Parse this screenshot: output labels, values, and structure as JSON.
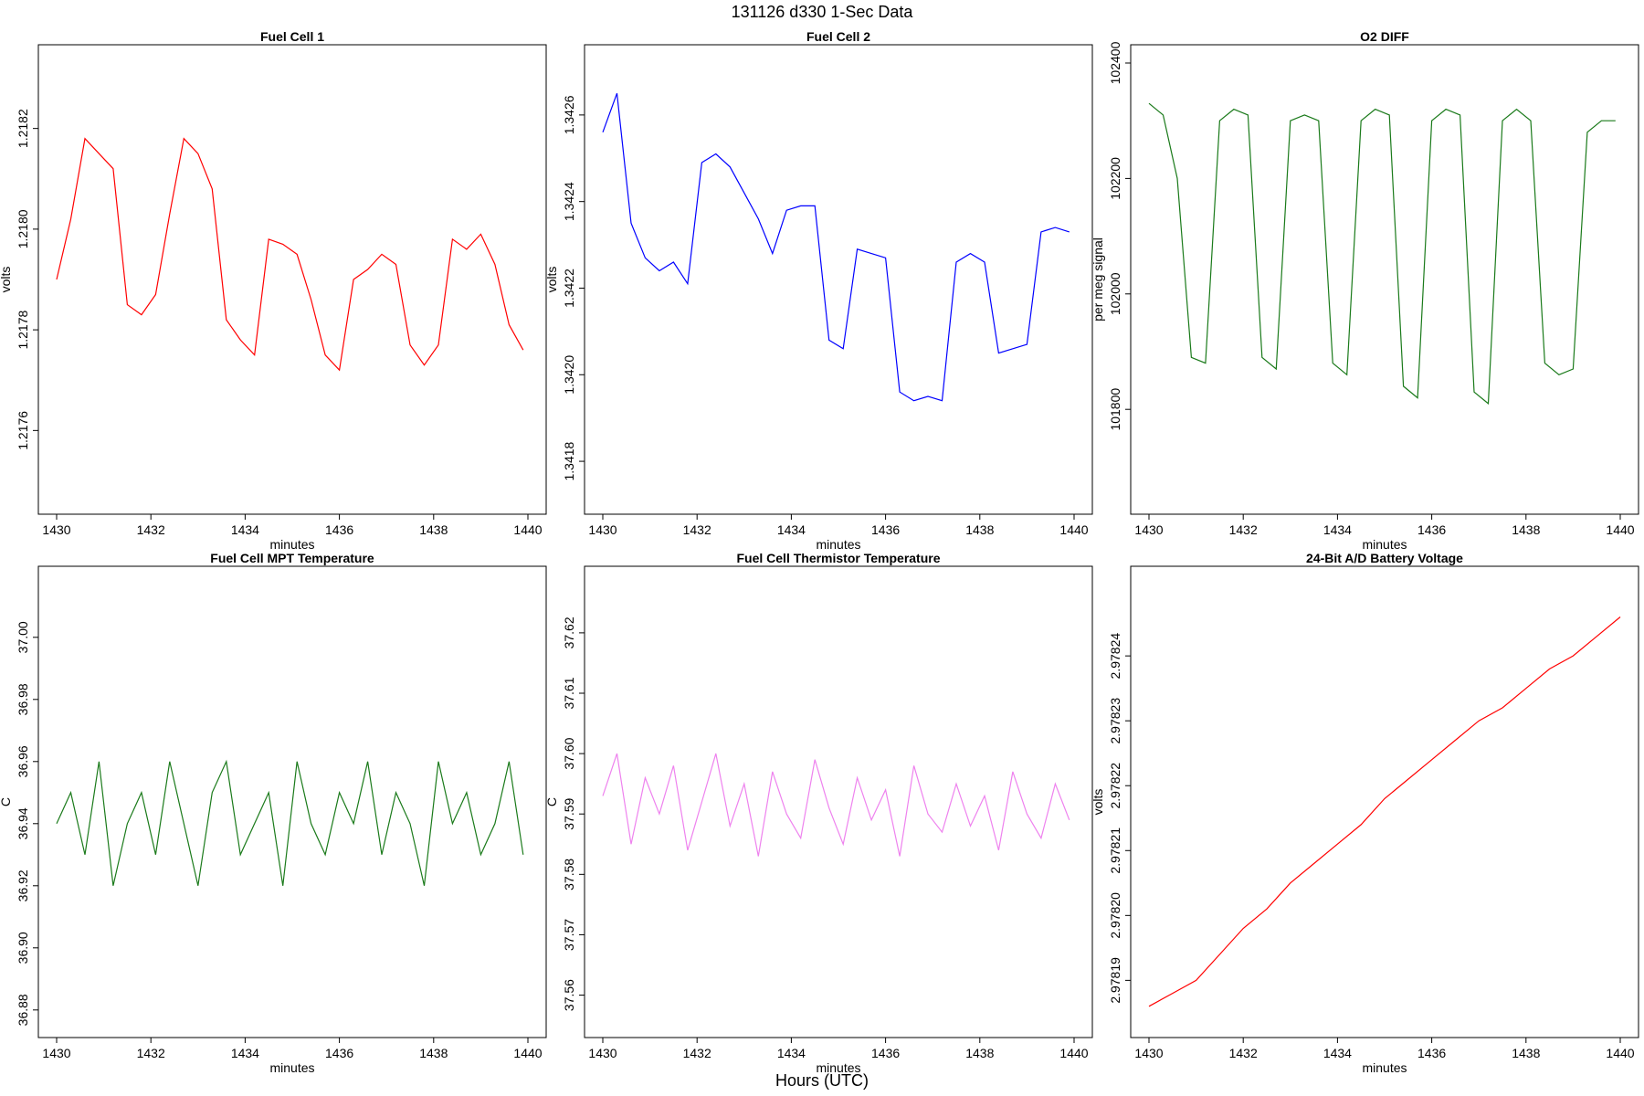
{
  "title": "131126   d330   1-Sec Data",
  "footer_xlabel": "Hours (UTC)",
  "chart_data": [
    {
      "type": "line",
      "title": "Fuel Cell 1",
      "xlabel": "minutes",
      "ylabel": "volts",
      "color": "#ff0000",
      "xlim": [
        1430,
        1440
      ],
      "ylim": [
        1.21747,
        1.21833
      ],
      "xticks": [
        1430,
        1432,
        1434,
        1436,
        1438,
        1440
      ],
      "xtick_labels": [
        "1430",
        "1432",
        "1434",
        "1436",
        "1438",
        "1440"
      ],
      "yticks": [
        1.2176,
        1.2178,
        1.218,
        1.2182
      ],
      "ytick_labels": [
        "1.2176",
        "1.2178",
        "1.2180",
        "1.2182"
      ],
      "x": [
        1430.0,
        1430.3,
        1430.6,
        1430.9,
        1431.2,
        1431.5,
        1431.8,
        1432.1,
        1432.4,
        1432.7,
        1433.0,
        1433.3,
        1433.6,
        1433.9,
        1434.2,
        1434.5,
        1434.8,
        1435.1,
        1435.4,
        1435.7,
        1436.0,
        1436.3,
        1436.6,
        1436.9,
        1437.2,
        1437.5,
        1437.8,
        1438.1,
        1438.4,
        1438.7,
        1439.0,
        1439.3,
        1439.6,
        1439.9
      ],
      "y": [
        1.2179,
        1.21802,
        1.21818,
        1.21815,
        1.21812,
        1.21785,
        1.21783,
        1.21787,
        1.21803,
        1.21818,
        1.21815,
        1.21808,
        1.21782,
        1.21778,
        1.21775,
        1.21798,
        1.21797,
        1.21795,
        1.21786,
        1.21775,
        1.21772,
        1.2179,
        1.21792,
        1.21795,
        1.21793,
        1.21777,
        1.21773,
        1.21777,
        1.21798,
        1.21796,
        1.21799,
        1.21793,
        1.21781,
        1.21776
      ]
    },
    {
      "type": "line",
      "title": "Fuel Cell 2",
      "xlabel": "minutes",
      "ylabel": "volts",
      "color": "#0000ff",
      "xlim": [
        1430,
        1440
      ],
      "ylim": [
        1.34172,
        1.34272
      ],
      "xticks": [
        1430,
        1432,
        1434,
        1436,
        1438,
        1440
      ],
      "xtick_labels": [
        "1430",
        "1432",
        "1434",
        "1436",
        "1438",
        "1440"
      ],
      "yticks": [
        1.3418,
        1.342,
        1.3422,
        1.3424,
        1.3426
      ],
      "ytick_labels": [
        "1.3418",
        "1.3420",
        "1.3422",
        "1.3424",
        "1.3426"
      ],
      "x": [
        1430.0,
        1430.3,
        1430.6,
        1430.9,
        1431.2,
        1431.5,
        1431.8,
        1432.1,
        1432.4,
        1432.7,
        1433.0,
        1433.3,
        1433.6,
        1433.9,
        1434.2,
        1434.5,
        1434.8,
        1435.1,
        1435.4,
        1435.7,
        1436.0,
        1436.3,
        1436.6,
        1436.9,
        1437.2,
        1437.5,
        1437.8,
        1438.1,
        1438.4,
        1438.7,
        1439.0,
        1439.3,
        1439.6,
        1439.9
      ],
      "y": [
        1.34256,
        1.34265,
        1.34235,
        1.34227,
        1.34224,
        1.34226,
        1.34221,
        1.34249,
        1.34251,
        1.34248,
        1.34242,
        1.34236,
        1.34228,
        1.34238,
        1.34239,
        1.34239,
        1.34208,
        1.34206,
        1.34229,
        1.34228,
        1.34227,
        1.34196,
        1.34194,
        1.34195,
        1.34194,
        1.34226,
        1.34228,
        1.34226,
        1.34205,
        1.34206,
        1.34207,
        1.34233,
        1.34234,
        1.34233
      ]
    },
    {
      "type": "line",
      "title": "O2 DIFF",
      "xlabel": "minutes",
      "ylabel": "per meg signal",
      "color": "#1a7a1a",
      "xlim": [
        1430,
        1440
      ],
      "ylim": [
        101650,
        102400
      ],
      "xticks": [
        1430,
        1432,
        1434,
        1436,
        1438,
        1440
      ],
      "xtick_labels": [
        "1430",
        "1432",
        "1434",
        "1436",
        "1438",
        "1440"
      ],
      "yticks": [
        101800,
        102000,
        102200,
        102400
      ],
      "ytick_labels": [
        "101800",
        "102000",
        "102200",
        "102400"
      ],
      "x": [
        1430.0,
        1430.3,
        1430.6,
        1430.9,
        1431.2,
        1431.5,
        1431.8,
        1432.1,
        1432.4,
        1432.7,
        1433.0,
        1433.3,
        1433.6,
        1433.9,
        1434.2,
        1434.5,
        1434.8,
        1435.1,
        1435.4,
        1435.7,
        1436.0,
        1436.3,
        1436.6,
        1436.9,
        1437.2,
        1437.5,
        1437.8,
        1438.1,
        1438.4,
        1438.7,
        1439.0,
        1439.3,
        1439.6,
        1439.9
      ],
      "y": [
        102330,
        102310,
        102200,
        101890,
        101880,
        102300,
        102320,
        102310,
        101890,
        101870,
        102300,
        102310,
        102300,
        101880,
        101860,
        102300,
        102320,
        102310,
        101840,
        101820,
        102300,
        102320,
        102310,
        101830,
        101810,
        102300,
        102320,
        102300,
        101880,
        101860,
        101870,
        102280,
        102300,
        102300
      ]
    },
    {
      "type": "line",
      "title": "Fuel Cell MPT Temperature",
      "xlabel": "minutes",
      "ylabel": "C",
      "color": "#1a7a1a",
      "xlim": [
        1430,
        1440
      ],
      "ylim": [
        36.877,
        37.017
      ],
      "xticks": [
        1430,
        1432,
        1434,
        1436,
        1438,
        1440
      ],
      "xtick_labels": [
        "1430",
        "1432",
        "1434",
        "1436",
        "1438",
        "1440"
      ],
      "yticks": [
        36.88,
        36.9,
        36.92,
        36.94,
        36.96,
        36.98,
        37.0
      ],
      "ytick_labels": [
        "36.88",
        "36.90",
        "36.92",
        "36.94",
        "36.96",
        "36.98",
        "37.00"
      ],
      "x": [
        1430.0,
        1430.3,
        1430.6,
        1430.9,
        1431.2,
        1431.5,
        1431.8,
        1432.1,
        1432.4,
        1432.7,
        1433.0,
        1433.3,
        1433.6,
        1433.9,
        1434.2,
        1434.5,
        1434.8,
        1435.1,
        1435.4,
        1435.7,
        1436.0,
        1436.3,
        1436.6,
        1436.9,
        1437.2,
        1437.5,
        1437.8,
        1438.1,
        1438.4,
        1438.7,
        1439.0,
        1439.3,
        1439.6,
        1439.9
      ],
      "y": [
        36.94,
        36.95,
        36.93,
        36.96,
        36.92,
        36.94,
        36.95,
        36.93,
        36.96,
        36.94,
        36.92,
        36.95,
        36.96,
        36.93,
        36.94,
        36.95,
        36.92,
        36.96,
        36.94,
        36.93,
        36.95,
        36.94,
        36.96,
        36.93,
        36.95,
        36.94,
        36.92,
        36.96,
        36.94,
        36.95,
        36.93,
        36.94,
        36.96,
        36.93
      ]
    },
    {
      "type": "line",
      "title": "Fuel Cell Thermistor Temperature",
      "xlabel": "minutes",
      "ylabel": "C",
      "color": "#ee82ee",
      "xlim": [
        1430,
        1440
      ],
      "ylim": [
        37.556,
        37.628
      ],
      "xticks": [
        1430,
        1432,
        1434,
        1436,
        1438,
        1440
      ],
      "xtick_labels": [
        "1430",
        "1432",
        "1434",
        "1436",
        "1438",
        "1440"
      ],
      "yticks": [
        37.56,
        37.57,
        37.58,
        37.59,
        37.6,
        37.61,
        37.62
      ],
      "ytick_labels": [
        "37.56",
        "37.57",
        "37.58",
        "37.59",
        "37.60",
        "37.61",
        "37.62"
      ],
      "x": [
        1430.0,
        1430.3,
        1430.6,
        1430.9,
        1431.2,
        1431.5,
        1431.8,
        1432.1,
        1432.4,
        1432.7,
        1433.0,
        1433.3,
        1433.6,
        1433.9,
        1434.2,
        1434.5,
        1434.8,
        1435.1,
        1435.4,
        1435.7,
        1436.0,
        1436.3,
        1436.6,
        1436.9,
        1437.2,
        1437.5,
        1437.8,
        1438.1,
        1438.4,
        1438.7,
        1439.0,
        1439.3,
        1439.6,
        1439.9
      ],
      "y": [
        37.593,
        37.6,
        37.585,
        37.596,
        37.59,
        37.598,
        37.584,
        37.592,
        37.6,
        37.588,
        37.595,
        37.583,
        37.597,
        37.59,
        37.586,
        37.599,
        37.591,
        37.585,
        37.596,
        37.589,
        37.594,
        37.583,
        37.598,
        37.59,
        37.587,
        37.595,
        37.588,
        37.593,
        37.584,
        37.597,
        37.59,
        37.586,
        37.595,
        37.589
      ]
    },
    {
      "type": "line",
      "title": "24-Bit A/D Battery Voltage",
      "xlabel": "minutes",
      "ylabel": "volts",
      "color": "#ff0000",
      "xlim": [
        1430,
        1440
      ],
      "ylim": [
        2.978184,
        2.978251
      ],
      "xticks": [
        1430,
        1432,
        1434,
        1436,
        1438,
        1440
      ],
      "xtick_labels": [
        "1430",
        "1432",
        "1434",
        "1436",
        "1438",
        "1440"
      ],
      "yticks": [
        2.97819,
        2.9782,
        2.97821,
        2.97822,
        2.97823,
        2.97824
      ],
      "ytick_labels": [
        "2.97819",
        "2.97820",
        "2.97821",
        "2.97822",
        "2.97823",
        "2.97824"
      ],
      "x": [
        1430.0,
        1430.5,
        1431.0,
        1431.5,
        1432.0,
        1432.5,
        1433.0,
        1433.5,
        1434.0,
        1434.5,
        1435.0,
        1435.5,
        1436.0,
        1436.5,
        1437.0,
        1437.5,
        1438.0,
        1438.5,
        1439.0,
        1439.5,
        1440.0
      ],
      "y": [
        2.978186,
        2.978188,
        2.97819,
        2.978194,
        2.978198,
        2.978201,
        2.978205,
        2.978208,
        2.978211,
        2.978214,
        2.978218,
        2.978221,
        2.978224,
        2.978227,
        2.97823,
        2.978232,
        2.978235,
        2.978238,
        2.97824,
        2.978243,
        2.978246
      ]
    }
  ]
}
